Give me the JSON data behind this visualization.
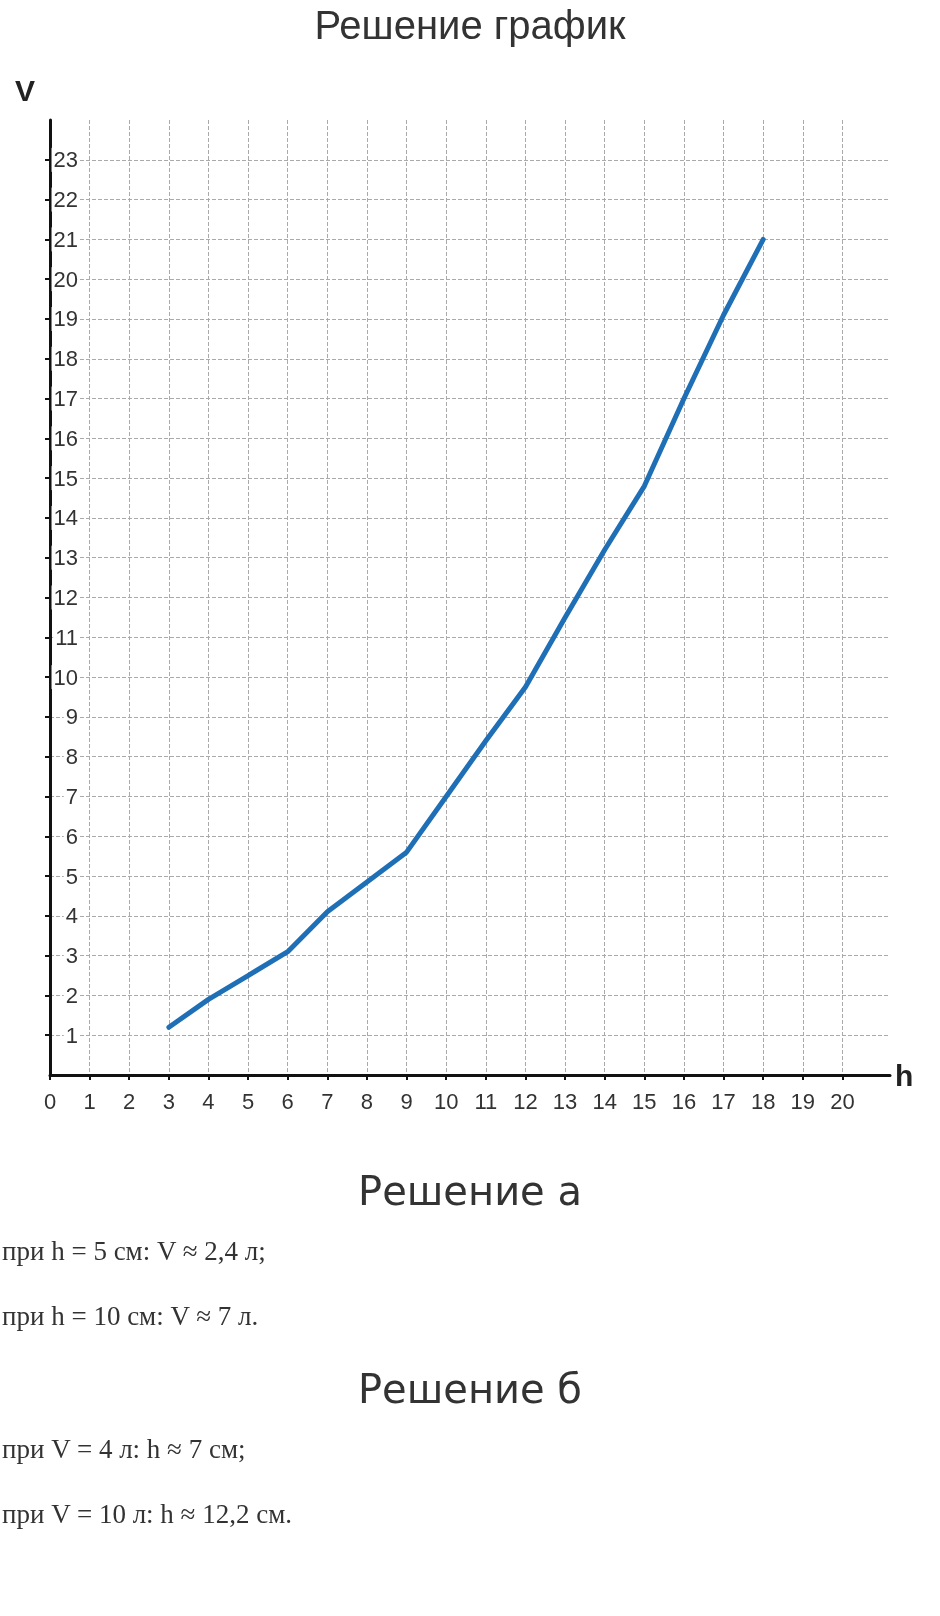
{
  "chart_data": {
    "type": "line",
    "title": "Решение график",
    "xlabel": "h",
    "ylabel": "V",
    "x": [
      3,
      4,
      5,
      6,
      7,
      8,
      9,
      10,
      11,
      12,
      13,
      14,
      15,
      16,
      17,
      18
    ],
    "series": [
      {
        "color": "#1f6fb6",
        "values": [
          1.2,
          1.9,
          2.5,
          3.1,
          4.1,
          4.85,
          5.6,
          7.0,
          8.4,
          9.75,
          11.5,
          13.2,
          14.8,
          17.0,
          19.1,
          21.0
        ]
      }
    ],
    "xlim": [
      0,
      21.2
    ],
    "ylim": [
      0,
      24
    ],
    "xticks": [
      0,
      1,
      2,
      3,
      4,
      5,
      6,
      7,
      8,
      9,
      10,
      11,
      12,
      13,
      14,
      15,
      16,
      17,
      18,
      19,
      20
    ],
    "yticks": [
      1,
      2,
      3,
      4,
      5,
      6,
      7,
      8,
      9,
      10,
      11,
      12,
      13,
      14,
      15,
      16,
      17,
      18,
      19,
      20,
      21,
      22,
      23
    ],
    "grid": true,
    "marker": "none",
    "line_style": "solid",
    "annotations": [
      "Решение а",
      "при h = 5 см: V ≈ 2,4 л;",
      "при h = 10 см: V ≈ 7 л.",
      "Решение б",
      "при V = 4 л: h ≈ 7 см;",
      "при V = 10 л: h ≈ 12,2 см."
    ]
  }
}
